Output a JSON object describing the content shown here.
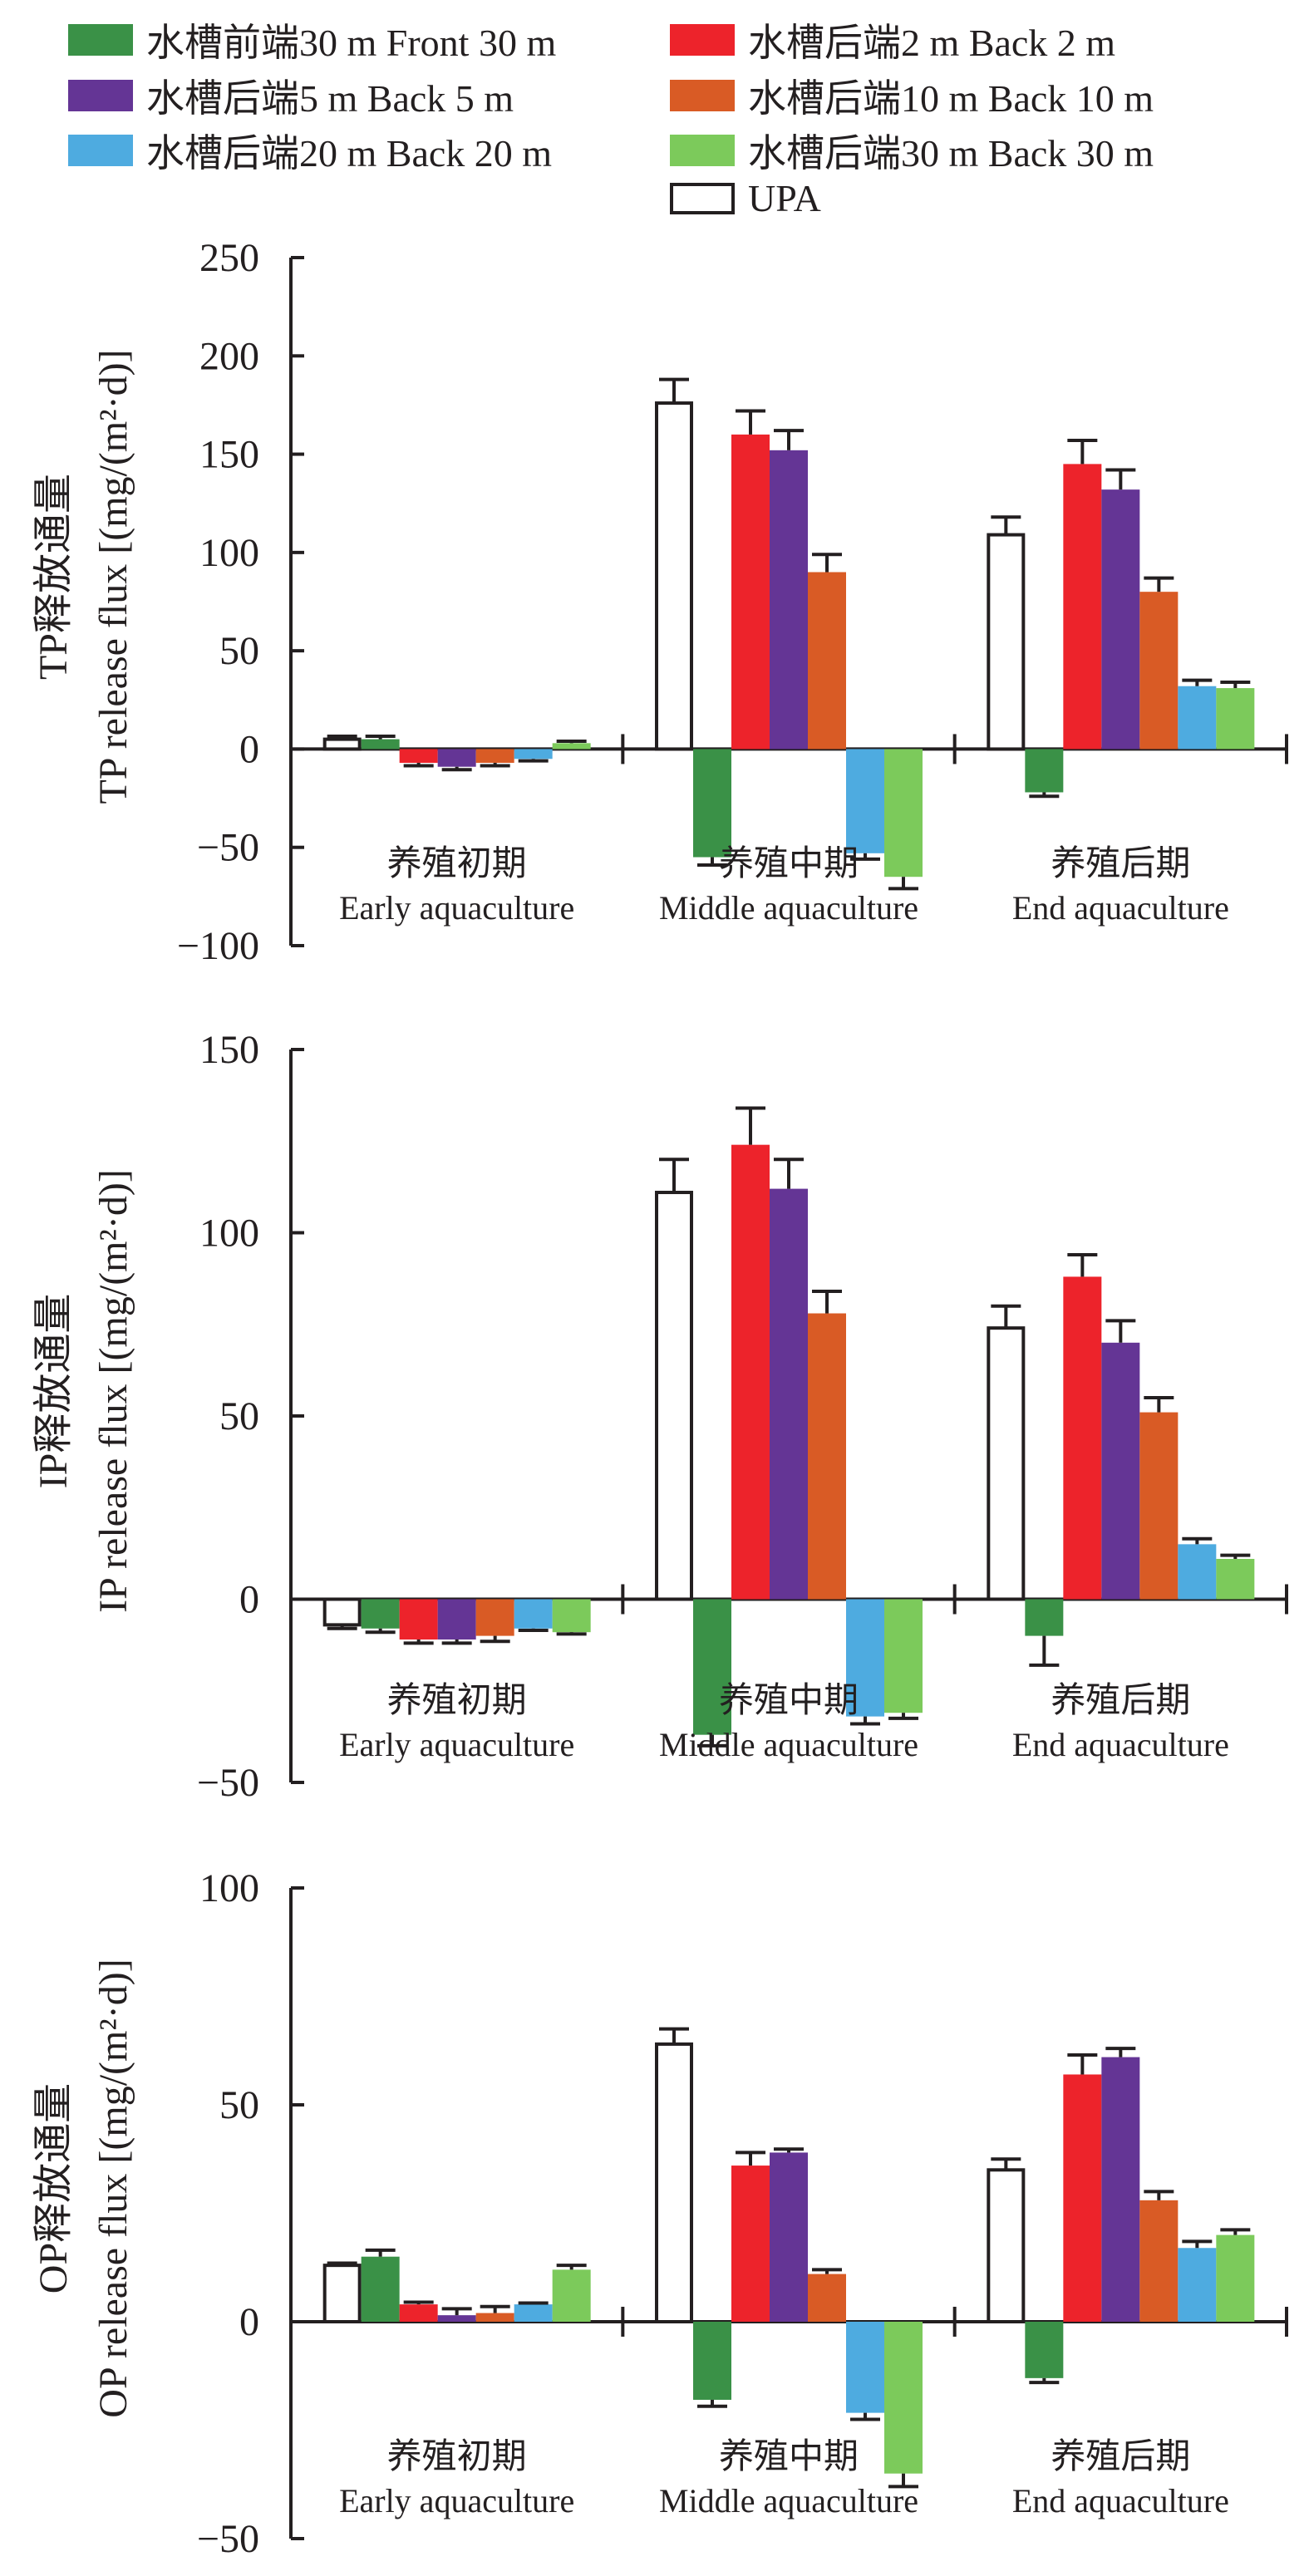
{
  "legend": [
    {
      "label": "水槽前端30 m Front 30 m",
      "color": "#3a9147"
    },
    {
      "label": "水槽后端2 m Back 2 m",
      "color": "#ed232b"
    },
    {
      "label": "水槽后端5 m  Back 5 m",
      "color": "#643595"
    },
    {
      "label": "水槽后端10 m Back 10 m",
      "color": "#d95b25"
    },
    {
      "label": "水槽后端20 m Back 20 m",
      "color": "#4eabe0"
    },
    {
      "label": "水槽后端30 m Back 30 m",
      "color": "#7cca5b"
    },
    {
      "label": "UPA",
      "color": "#ffffff"
    }
  ],
  "chart_data": [
    {
      "type": "bar",
      "ylabel_cn": "TP释放通量",
      "ylabel_en": "TP release flux [(mg/(m²·d)]",
      "ylim": [
        -100,
        250
      ],
      "yticks": [
        -100,
        -50,
        0,
        50,
        100,
        150,
        200,
        250
      ],
      "categories": [
        {
          "cn": "养殖初期",
          "en": "Early aquaculture"
        },
        {
          "cn": "养殖中期",
          "en": "Middle aquaculture"
        },
        {
          "cn": "养殖后期",
          "en": "End aquaculture"
        }
      ],
      "series": [
        {
          "name": "UPA",
          "values": [
            5,
            176,
            109
          ],
          "errors": [
            1.5,
            12,
            9
          ]
        },
        {
          "name": "Front 30 m",
          "values": [
            5,
            -55,
            -22
          ],
          "errors": [
            1.5,
            4,
            2
          ]
        },
        {
          "name": "Back 2 m",
          "values": [
            -7,
            160,
            145
          ],
          "errors": [
            1.5,
            12,
            12
          ]
        },
        {
          "name": "Back 5 m",
          "values": [
            -9,
            152,
            132
          ],
          "errors": [
            1.5,
            10,
            10
          ]
        },
        {
          "name": "Back 10 m",
          "values": [
            -7,
            90,
            80
          ],
          "errors": [
            1.5,
            9,
            7
          ]
        },
        {
          "name": "Back 20 m",
          "values": [
            -5,
            -53,
            32
          ],
          "errors": [
            1,
            3,
            3
          ]
        },
        {
          "name": "Back 30 m",
          "values": [
            3,
            -65,
            31
          ],
          "errors": [
            1,
            6,
            3
          ]
        }
      ]
    },
    {
      "type": "bar",
      "ylabel_cn": "IP释放通量",
      "ylabel_en": "IP release flux [(mg/(m²·d)]",
      "ylim": [
        -50,
        150
      ],
      "yticks": [
        -50,
        0,
        50,
        100,
        150
      ],
      "categories": [
        {
          "cn": "养殖初期",
          "en": "Early aquaculture"
        },
        {
          "cn": "养殖中期",
          "en": "Middle aquaculture"
        },
        {
          "cn": "养殖后期",
          "en": "End aquaculture"
        }
      ],
      "series": [
        {
          "name": "UPA",
          "values": [
            -7,
            111,
            74
          ],
          "errors": [
            1,
            9,
            6
          ]
        },
        {
          "name": "Front 30 m",
          "values": [
            -8,
            -37,
            -10
          ],
          "errors": [
            1,
            3,
            8
          ]
        },
        {
          "name": "Back 2 m",
          "values": [
            -11,
            124,
            88
          ],
          "errors": [
            1,
            10,
            6
          ]
        },
        {
          "name": "Back 5 m",
          "values": [
            -11,
            112,
            70
          ],
          "errors": [
            1,
            8,
            6
          ]
        },
        {
          "name": "Back 10 m",
          "values": [
            -10,
            78,
            51
          ],
          "errors": [
            1.5,
            6,
            4
          ]
        },
        {
          "name": "Back 20 m",
          "values": [
            -8,
            -32,
            15
          ],
          "errors": [
            0.5,
            2,
            1.5
          ]
        },
        {
          "name": "Back 30 m",
          "values": [
            -9,
            -31,
            11
          ],
          "errors": [
            0.5,
            1.5,
            1
          ]
        }
      ]
    },
    {
      "type": "bar",
      "ylabel_cn": "OP释放通量",
      "ylabel_en": "OP release flux [(mg/(m²·d)]",
      "ylim": [
        -50,
        100
      ],
      "yticks": [
        -50,
        0,
        50,
        100
      ],
      "categories": [
        {
          "cn": "养殖初期",
          "en": "Early aquaculture"
        },
        {
          "cn": "养殖中期",
          "en": "Middle aquaculture"
        },
        {
          "cn": "养殖后期",
          "en": "End aquaculture"
        }
      ],
      "series": [
        {
          "name": "UPA",
          "values": [
            13,
            64,
            35
          ],
          "errors": [
            0.5,
            3.5,
            2.5
          ]
        },
        {
          "name": "Front 30 m",
          "values": [
            15,
            -18,
            -13
          ],
          "errors": [
            1.5,
            1.5,
            1
          ]
        },
        {
          "name": "Back 2 m",
          "values": [
            4,
            36,
            57
          ],
          "errors": [
            0.5,
            3,
            4.5
          ]
        },
        {
          "name": "Back 5 m",
          "values": [
            1.5,
            39,
            61
          ],
          "errors": [
            1.5,
            0.8,
            2
          ]
        },
        {
          "name": "Back 10 m",
          "values": [
            2,
            11,
            28
          ],
          "errors": [
            1.5,
            1,
            2
          ]
        },
        {
          "name": "Back 20 m",
          "values": [
            4,
            -21,
            17
          ],
          "errors": [
            0.3,
            1.5,
            1.5
          ]
        },
        {
          "name": "Back 30 m",
          "values": [
            12,
            -35,
            20
          ],
          "errors": [
            1,
            3,
            1.2
          ]
        }
      ]
    }
  ]
}
